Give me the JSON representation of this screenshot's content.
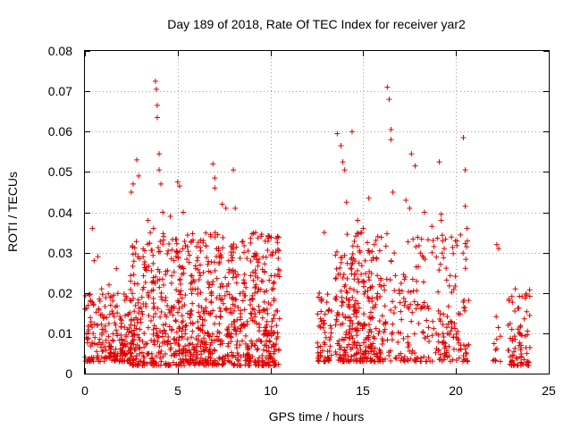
{
  "chart_data": {
    "type": "scatter",
    "title": "Day 189 of 2018, Rate Of TEC Index for receiver yar2",
    "xlabel": "GPS time / hours",
    "ylabel": "ROTI / TECUs",
    "xlim": [
      0,
      25
    ],
    "ylim": [
      0,
      0.08
    ],
    "xticks": [
      0,
      5,
      10,
      15,
      20,
      25
    ],
    "xtick_labels": [
      "0",
      "5",
      "10",
      "15",
      "20",
      "25"
    ],
    "yticks": [
      0,
      0.01,
      0.02,
      0.03,
      0.04,
      0.05,
      0.06,
      0.07,
      0.08
    ],
    "ytick_labels": [
      "0",
      "0.01",
      "0.02",
      "0.03",
      "0.04",
      "0.05",
      "0.06",
      "0.07",
      "0.08"
    ],
    "grid": true,
    "marker": "plus",
    "color": "#e00000",
    "clusters": [
      {
        "x_range": [
          0.0,
          2.4
        ],
        "y_range": [
          0.003,
          0.02
        ],
        "count": 200
      },
      {
        "x_range": [
          2.4,
          10.5
        ],
        "y_range": [
          0.002,
          0.035
        ],
        "count": 1000
      },
      {
        "x_range": [
          12.5,
          13.3
        ],
        "y_range": [
          0.003,
          0.02
        ],
        "count": 60
      },
      {
        "x_range": [
          13.5,
          16.0
        ],
        "y_range": [
          0.003,
          0.035
        ],
        "count": 300
      },
      {
        "x_range": [
          16.0,
          20.7
        ],
        "y_range": [
          0.003,
          0.035
        ],
        "count": 260
      },
      {
        "x_range": [
          22.0,
          22.4
        ],
        "y_range": [
          0.003,
          0.015
        ],
        "count": 12
      },
      {
        "x_range": [
          22.8,
          24.0
        ],
        "y_range": [
          0.002,
          0.021
        ],
        "count": 80
      }
    ],
    "series": [
      {
        "name": "ROTI",
        "x": [
          0.4,
          0.5,
          0.7,
          0.9,
          1.3,
          1.5,
          1.7,
          2.5,
          2.6,
          2.8,
          2.9,
          3.4,
          3.7,
          3.8,
          3.85,
          3.9,
          3.9,
          4.0,
          4.0,
          4.1,
          4.2,
          4.6,
          5.0,
          5.1,
          5.3,
          6.9,
          7.0,
          7.0,
          7.4,
          7.6,
          8.0,
          8.1,
          9.2,
          12.9,
          13.6,
          13.8,
          13.9,
          14.0,
          14.1,
          14.4,
          14.7,
          15.0,
          15.3,
          15.6,
          16.3,
          16.4,
          16.5,
          16.5,
          16.6,
          17.3,
          17.5,
          17.6,
          17.8,
          18.3,
          18.7,
          19.1,
          19.2,
          19.2,
          20.4,
          20.5,
          20.5,
          20.6,
          22.2,
          22.3,
          23.2
        ],
        "y": [
          0.036,
          0.028,
          0.029,
          0.021,
          0.022,
          0.018,
          0.026,
          0.045,
          0.047,
          0.053,
          0.049,
          0.038,
          0.036,
          0.0725,
          0.0705,
          0.0665,
          0.0635,
          0.0545,
          0.0505,
          0.047,
          0.04,
          0.039,
          0.0475,
          0.0465,
          0.04,
          0.052,
          0.0485,
          0.046,
          0.042,
          0.041,
          0.0505,
          0.041,
          0.035,
          0.035,
          0.0595,
          0.0565,
          0.0525,
          0.0505,
          0.0425,
          0.06,
          0.038,
          0.036,
          0.0435,
          0.032,
          0.071,
          0.068,
          0.0605,
          0.058,
          0.045,
          0.043,
          0.041,
          0.0545,
          0.0515,
          0.04,
          0.0365,
          0.0525,
          0.0395,
          0.038,
          0.0585,
          0.0505,
          0.0415,
          0.036,
          0.032,
          0.031,
          0.021
        ]
      }
    ]
  }
}
